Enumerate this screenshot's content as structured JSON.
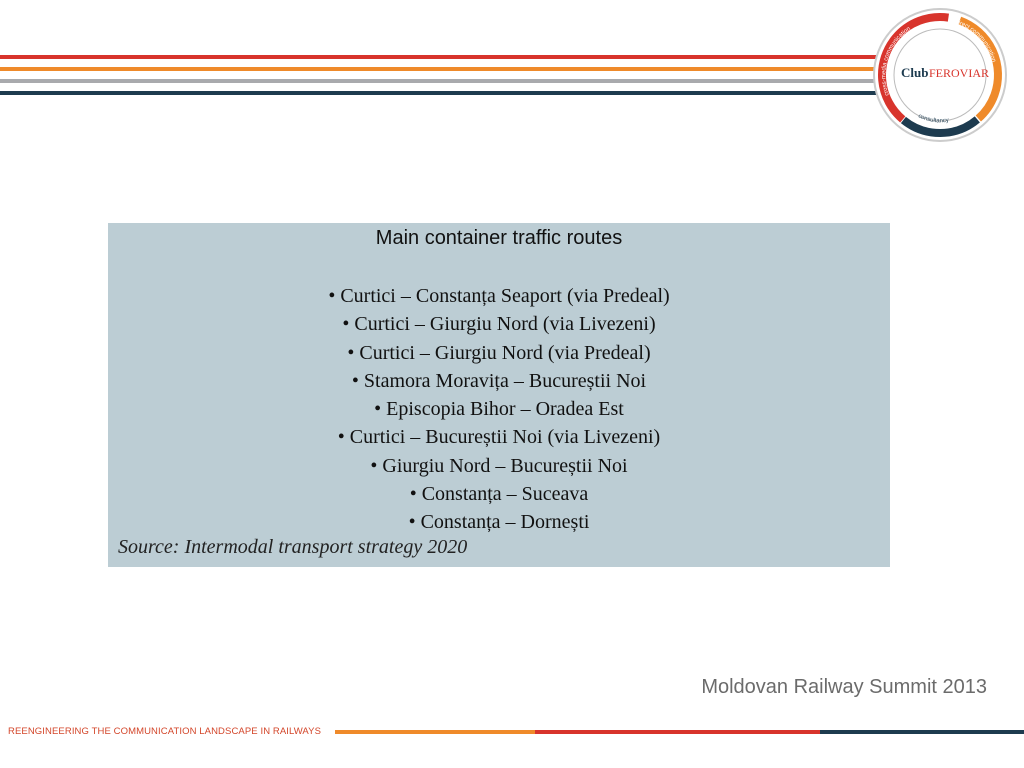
{
  "logo": {
    "name": "Club",
    "name_accent": "FEROVIAR",
    "ring": [
      "cross-media communication",
      "direct communication",
      "consultancy"
    ]
  },
  "box": {
    "title": "Main container traffic routes",
    "items": [
      "• Curtici – Constanța Seaport (via Predeal)",
      "• Curtici – Giurgiu Nord (via Livezeni)",
      "• Curtici – Giurgiu Nord (via Predeal)",
      "• Stamora Moravița – Bucureștii Noi",
      "• Episcopia Bihor – Oradea Est",
      "• Curtici – Bucureștii Noi (via Livezeni)",
      "• Giurgiu Nord – Bucureștii Noi",
      "• Constanța – Suceava",
      "• Constanța – Dornești"
    ],
    "source": "Source: Intermodal transport strategy 2020"
  },
  "footer": {
    "event": "Moldovan Railway Summit 2013",
    "tagline": "REENGINEERING  THE  COMMUNICATION LANDSCAPE IN RAILWAYS"
  }
}
